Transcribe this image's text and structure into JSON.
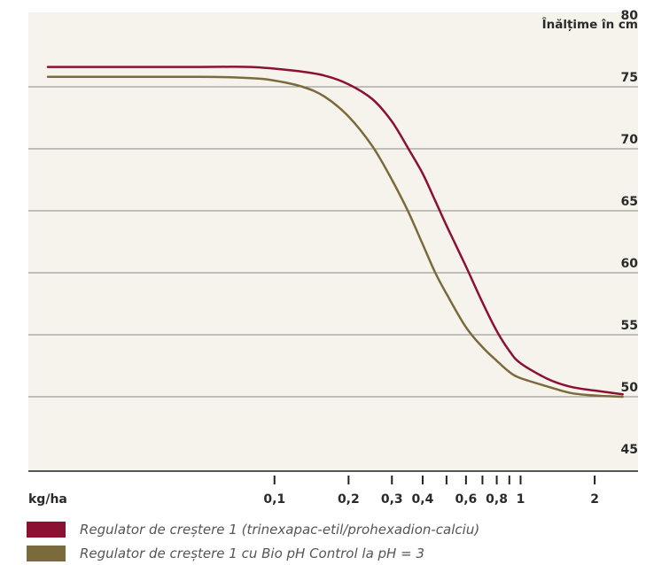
{
  "chart_data": {
    "type": "line",
    "ylabel": "Înălțime în cm",
    "xlabel": "kg/ha",
    "x_scale": "log",
    "xlim": [
      0.01,
      3
    ],
    "ylim": [
      44,
      81
    ],
    "y_ticks": [
      80,
      75,
      70,
      65,
      60,
      55,
      50,
      45
    ],
    "y_tick_labels": [
      "80",
      "75",
      "70",
      "65",
      "60",
      "55",
      "50",
      "45"
    ],
    "x_ticks": [
      0.1,
      0.2,
      0.3,
      0.4,
      0.5,
      0.6,
      0.7,
      0.8,
      0.9,
      1,
      2
    ],
    "x_tick_labels": [
      "0,1",
      "0,2",
      "0,3",
      "0,4",
      "",
      "0,6",
      "",
      "0,8",
      "",
      "1",
      "2"
    ],
    "grid": true,
    "legend_position": "bottom",
    "background": "#f5f3ec",
    "series": [
      {
        "name": "Regulator de creștere 1 (trinexapac-etil/prohexadion-calciu)",
        "color": "#8a1230",
        "x": [
          0.012,
          0.05,
          0.08,
          0.12,
          0.16,
          0.2,
          0.25,
          0.3,
          0.35,
          0.4,
          0.45,
          0.5,
          0.6,
          0.7,
          0.8,
          0.9,
          1.0,
          1.3,
          1.6,
          2.0,
          2.6
        ],
        "y": [
          76.6,
          76.6,
          76.6,
          76.3,
          75.9,
          75.2,
          74.0,
          72.2,
          70.0,
          68.0,
          65.8,
          63.8,
          60.5,
          57.6,
          55.3,
          53.7,
          52.7,
          51.4,
          50.8,
          50.5,
          50.2
        ]
      },
      {
        "name": "Regulator de creștere 1 cu Bio pH Control la pH = 3",
        "color": "#7a6a3c",
        "x": [
          0.012,
          0.05,
          0.08,
          0.1,
          0.13,
          0.16,
          0.2,
          0.25,
          0.3,
          0.35,
          0.4,
          0.45,
          0.5,
          0.6,
          0.7,
          0.8,
          0.9,
          1.0,
          1.3,
          1.6,
          2.0,
          2.6
        ],
        "y": [
          75.8,
          75.8,
          75.7,
          75.5,
          75.0,
          74.2,
          72.6,
          70.2,
          67.5,
          64.9,
          62.3,
          60.0,
          58.3,
          55.6,
          54.0,
          52.9,
          52.0,
          51.5,
          50.8,
          50.3,
          50.1,
          50.0
        ]
      }
    ]
  }
}
